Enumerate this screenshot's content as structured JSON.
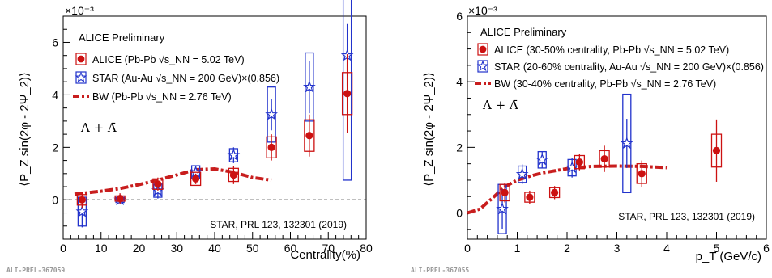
{
  "chart_data": [
    {
      "type": "scatter",
      "title": "",
      "xlabel": "Centrality(%)",
      "ylabel": "⟨P_Z sin(2φ - 2Ψ_2)⟩",
      "y_multiplier": "×10⁻³",
      "xlim": [
        0,
        80
      ],
      "ylim": [
        -1.5,
        7.0
      ],
      "xticks": [
        0,
        10,
        20,
        30,
        40,
        50,
        60,
        70,
        80
      ],
      "yticks": [
        0,
        2,
        4,
        6
      ],
      "preliminary": "ALICE Preliminary",
      "annotation": "Λ + Λ̄",
      "reference": "STAR, PRL 123, 132301 (2019)",
      "figure_id": "ALI-PREL-367059",
      "legend": [
        {
          "key": "alice",
          "label": "ALICE (Pb-Pb √s_NN = 5.02 TeV)"
        },
        {
          "key": "star",
          "label": "STAR (Au-Au √s_NN = 200 GeV)×(0.856)"
        },
        {
          "key": "bw",
          "label": "BW (Pb-Pb √s_NN = 2.76 TeV)"
        }
      ],
      "series": [
        {
          "key": "alice",
          "name": "ALICE (Pb-Pb √s_NN = 5.02 TeV)",
          "color": "#cc1111",
          "marker": "circle",
          "x": [
            5,
            15,
            25,
            35,
            45,
            55,
            65,
            75
          ],
          "y": [
            0.0,
            0.05,
            0.6,
            0.8,
            0.95,
            2.0,
            2.45,
            4.05
          ],
          "stat_err": [
            0.3,
            0.2,
            0.25,
            0.2,
            0.35,
            0.5,
            0.8,
            1.5
          ],
          "sys_box": [
            0.2,
            0.1,
            0.2,
            0.25,
            0.25,
            0.4,
            0.6,
            0.8
          ]
        },
        {
          "key": "star",
          "name": "STAR (Au-Au √s_NN = 200 GeV)×(0.856)",
          "color": "#2233cc",
          "marker": "star",
          "x": [
            5,
            15,
            25,
            35,
            45,
            55,
            65,
            75
          ],
          "y": [
            -0.45,
            0.0,
            0.35,
            1.05,
            1.7,
            3.25,
            4.3,
            5.5
          ],
          "stat_err": [
            0.6,
            0.15,
            0.3,
            0.25,
            0.3,
            0.6,
            1.0,
            1.2
          ],
          "sys_box": [
            0.55,
            0.1,
            0.25,
            0.25,
            0.25,
            1.05,
            1.3,
            4.75
          ]
        },
        {
          "key": "bw",
          "name": "BW (Pb-Pb √s_NN = 2.76 TeV)",
          "color": "#c81e1e",
          "marker": "line",
          "x": [
            3,
            5,
            10,
            15,
            20,
            25,
            30,
            35,
            40,
            45,
            50,
            55
          ],
          "y": [
            0.22,
            0.25,
            0.33,
            0.43,
            0.58,
            0.75,
            0.95,
            1.15,
            1.18,
            1.05,
            0.85,
            0.75
          ]
        }
      ]
    },
    {
      "type": "scatter",
      "title": "",
      "xlabel": "p_T (GeV/c)",
      "ylabel": "⟨P_Z sin(2φ - 2Ψ_2)⟩",
      "y_multiplier": "×10⁻³",
      "xlim": [
        0,
        6
      ],
      "ylim": [
        -0.8,
        6.0
      ],
      "xticks": [
        0,
        1,
        2,
        3,
        4,
        5,
        6
      ],
      "yticks": [
        0,
        2,
        4,
        6
      ],
      "preliminary": "ALICE Preliminary",
      "annotation": "Λ + Λ̄",
      "reference": "STAR, PRL 123, 132301 (2019)",
      "figure_id": "ALI-PREL-367055",
      "legend": [
        {
          "key": "alice",
          "label": "ALICE (30-50% centrality, Pb-Pb √s_NN = 5.02 TeV)"
        },
        {
          "key": "star",
          "label": "STAR (20-60% centrality, Au-Au √s_NN = 200 GeV)×(0.856)"
        },
        {
          "key": "bw",
          "label": "BW (30-40% centrality, Pb-Pb √s_NN = 2.76 TeV)"
        }
      ],
      "series": [
        {
          "key": "alice",
          "name": "ALICE (30-50% centrality, Pb-Pb √s_NN = 5.02 TeV)",
          "color": "#cc1111",
          "marker": "circle",
          "x": [
            0.75,
            1.25,
            1.75,
            2.25,
            2.75,
            3.5,
            5.0
          ],
          "y": [
            0.62,
            0.48,
            0.62,
            1.55,
            1.65,
            1.2,
            1.9
          ],
          "stat_err": [
            0.3,
            0.2,
            0.2,
            0.25,
            0.4,
            0.4,
            0.95
          ],
          "sys_box": [
            0.25,
            0.15,
            0.15,
            0.2,
            0.25,
            0.3,
            0.5
          ]
        },
        {
          "key": "star",
          "name": "STAR (20-60% centrality, Au-Au √s_NN = 200 GeV)×(0.856)",
          "color": "#2233cc",
          "marker": "star",
          "x": [
            0.7,
            1.1,
            1.5,
            2.1,
            3.2
          ],
          "y": [
            0.12,
            1.18,
            1.62,
            1.38,
            2.12
          ],
          "stat_err": [
            0.6,
            0.3,
            0.25,
            0.3,
            0.75
          ],
          "sys_box": [
            0.75,
            0.25,
            0.25,
            0.25,
            1.5
          ]
        },
        {
          "key": "bw",
          "name": "BW (30-40% centrality, Pb-Pb √s_NN = 2.76 TeV)",
          "color": "#c81e1e",
          "marker": "line",
          "x": [
            0.0,
            0.25,
            0.5,
            0.75,
            1.0,
            1.25,
            1.5,
            2.0,
            2.5,
            3.0,
            3.5,
            4.0
          ],
          "y": [
            0.0,
            0.12,
            0.45,
            0.8,
            1.0,
            1.12,
            1.22,
            1.35,
            1.42,
            1.43,
            1.42,
            1.38
          ]
        }
      ]
    }
  ]
}
